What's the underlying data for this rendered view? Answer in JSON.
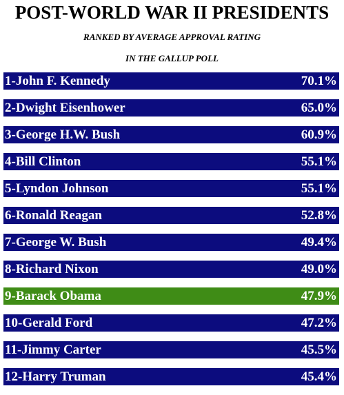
{
  "title": "POST-WORLD WAR II PRESIDENTS",
  "subtitle_line1": "RANKED BY AVERAGE APPROVAL RATING",
  "subtitle_line2": "IN THE GALLUP POLL",
  "colors": {
    "default_bar": "#0c0c7e",
    "highlight_bar": "#3f8c16",
    "text": "#ffffff"
  },
  "chart_data": {
    "type": "table",
    "title": "POST-WORLD WAR II PRESIDENTS",
    "subtitle": "RANKED BY AVERAGE APPROVAL RATING IN THE GALLUP POLL",
    "rows": [
      {
        "label": "1-John F. Kennedy",
        "value": 70.1,
        "value_text": "70.1%",
        "highlight": false
      },
      {
        "label": "2-Dwight Eisenhower",
        "value": 65.0,
        "value_text": "65.0%",
        "highlight": false
      },
      {
        "label": "3-George H.W. Bush",
        "value": 60.9,
        "value_text": "60.9%",
        "highlight": false
      },
      {
        "label": "4-Bill Clinton",
        "value": 55.1,
        "value_text": "55.1%",
        "highlight": false
      },
      {
        "label": "5-Lyndon Johnson",
        "value": 55.1,
        "value_text": "55.1%",
        "highlight": false
      },
      {
        "label": "6-Ronald Reagan",
        "value": 52.8,
        "value_text": "52.8%",
        "highlight": false
      },
      {
        "label": "7-George W. Bush",
        "value": 49.4,
        "value_text": "49.4%",
        "highlight": false
      },
      {
        "label": "8-Richard Nixon",
        "value": 49.0,
        "value_text": "49.0%",
        "highlight": false
      },
      {
        "label": "9-Barack Obama",
        "value": 47.9,
        "value_text": "47.9%",
        "highlight": true
      },
      {
        "label": "10-Gerald Ford",
        "value": 47.2,
        "value_text": "47.2%",
        "highlight": false
      },
      {
        "label": "11-Jimmy Carter",
        "value": 45.5,
        "value_text": "45.5%",
        "highlight": false
      },
      {
        "label": "12-Harry Truman",
        "value": 45.4,
        "value_text": "45.4%",
        "highlight": false
      }
    ]
  }
}
